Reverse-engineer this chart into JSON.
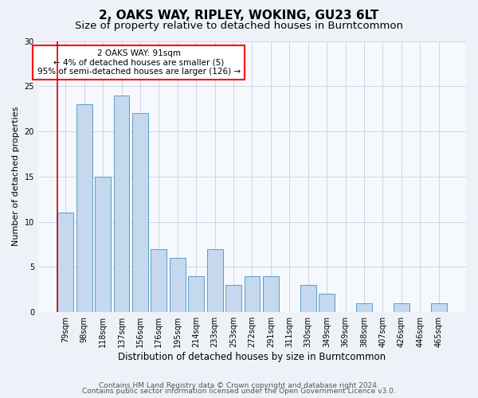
{
  "title": "2, OAKS WAY, RIPLEY, WOKING, GU23 6LT",
  "subtitle": "Size of property relative to detached houses in Burntcommon",
  "xlabel": "Distribution of detached houses by size in Burntcommon",
  "ylabel": "Number of detached properties",
  "categories": [
    "79sqm",
    "98sqm",
    "118sqm",
    "137sqm",
    "156sqm",
    "176sqm",
    "195sqm",
    "214sqm",
    "233sqm",
    "253sqm",
    "272sqm",
    "291sqm",
    "311sqm",
    "330sqm",
    "349sqm",
    "369sqm",
    "388sqm",
    "407sqm",
    "426sqm",
    "446sqm",
    "465sqm"
  ],
  "values": [
    11,
    23,
    15,
    24,
    22,
    7,
    6,
    4,
    7,
    3,
    4,
    4,
    0,
    3,
    2,
    0,
    1,
    0,
    1,
    0,
    1
  ],
  "bar_color": "#c5d8ed",
  "bar_edge_color": "#5a9ec9",
  "property_line_color": "#cc0000",
  "annotation_box_text": "2 OAKS WAY: 91sqm\n← 4% of detached houses are smaller (5)\n95% of semi-detached houses are larger (126) →",
  "ylim": [
    0,
    30
  ],
  "yticks": [
    0,
    5,
    10,
    15,
    20,
    25,
    30
  ],
  "footer_line1": "Contains HM Land Registry data © Crown copyright and database right 2024.",
  "footer_line2": "Contains public sector information licensed under the Open Government Licence v3.0.",
  "title_fontsize": 11,
  "subtitle_fontsize": 9.5,
  "xlabel_fontsize": 8.5,
  "ylabel_fontsize": 8,
  "tick_fontsize": 7,
  "footer_fontsize": 6.5,
  "annotation_fontsize": 7.5,
  "background_color": "#eef2f8",
  "plot_bg_color": "#f5f8fd"
}
